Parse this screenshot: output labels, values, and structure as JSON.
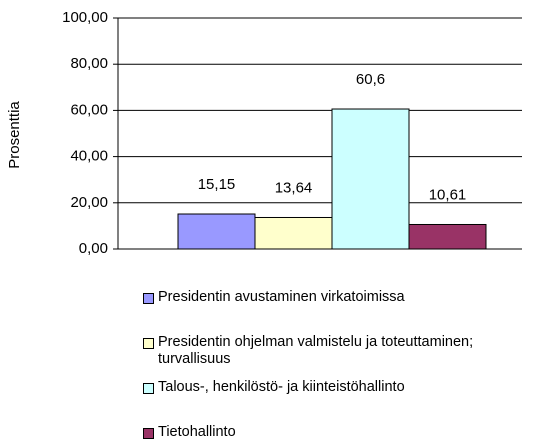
{
  "chart_data": {
    "type": "bar",
    "ylabel": "Prosenttia",
    "categories": [
      null
    ],
    "series": [
      {
        "name": "Presidentin avustaminen virkatoimissa",
        "color": "#9999ff",
        "values": [
          15.15
        ],
        "value_labels": [
          "15,15"
        ]
      },
      {
        "name": "Presidentin ohjelman valmistelu ja toteuttaminen; turvallisuus",
        "color": "#ffffcc",
        "values": [
          13.64
        ],
        "value_labels": [
          "13,64"
        ]
      },
      {
        "name": "Talous-, henkilöstö- ja kiinteistöhallinto",
        "color": "#ccffff",
        "values": [
          60.6
        ],
        "value_labels": [
          "60,6"
        ]
      },
      {
        "name": "Tietohallinto",
        "color": "#993366",
        "values": [
          10.61
        ],
        "value_labels": [
          "10,61"
        ]
      }
    ],
    "ylim": [
      0,
      100
    ],
    "yticks": [
      {
        "value": 0,
        "label": "0,00"
      },
      {
        "value": 20,
        "label": "20,00"
      },
      {
        "value": 40,
        "label": "40,00"
      },
      {
        "value": 60,
        "label": "60,00"
      },
      {
        "value": 80,
        "label": "80,00"
      },
      {
        "value": 100,
        "label": "100,00"
      }
    ],
    "grid": true
  }
}
